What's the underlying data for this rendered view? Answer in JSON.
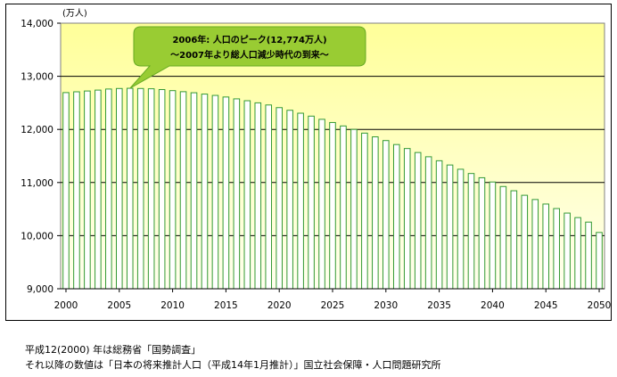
{
  "chart_data": {
    "type": "bar",
    "y_unit_label": "(万人)",
    "ylim": [
      9000,
      14000
    ],
    "yticks": [
      "9,000",
      "10,000",
      "11,000",
      "12,000",
      "13,000",
      "14,000"
    ],
    "ytick_values": [
      9000,
      10000,
      11000,
      12000,
      13000,
      14000
    ],
    "xticks": [
      "2000",
      "2005",
      "2010",
      "2015",
      "2020",
      "2025",
      "2030",
      "2035",
      "2040",
      "2045",
      "2050"
    ],
    "xtick_values": [
      2000,
      2005,
      2010,
      2015,
      2020,
      2025,
      2030,
      2035,
      2040,
      2045,
      2050
    ],
    "categories": [
      2000,
      2001,
      2002,
      2003,
      2004,
      2005,
      2006,
      2007,
      2008,
      2009,
      2010,
      2011,
      2012,
      2013,
      2014,
      2015,
      2016,
      2017,
      2018,
      2019,
      2020,
      2021,
      2022,
      2023,
      2024,
      2025,
      2026,
      2027,
      2028,
      2029,
      2030,
      2031,
      2032,
      2033,
      2034,
      2035,
      2036,
      2037,
      2038,
      2039,
      2040,
      2041,
      2042,
      2043,
      2044,
      2045,
      2046,
      2047,
      2048,
      2049,
      2050
    ],
    "values": [
      12693,
      12708,
      12723,
      12740,
      12760,
      12770,
      12774,
      12770,
      12765,
      12750,
      12730,
      12710,
      12690,
      12665,
      12640,
      12610,
      12575,
      12540,
      12500,
      12460,
      12410,
      12360,
      12305,
      12250,
      12190,
      12130,
      12065,
      12000,
      11930,
      11860,
      11790,
      11715,
      11640,
      11565,
      11485,
      11410,
      11330,
      11250,
      11170,
      11090,
      11010,
      10925,
      10845,
      10760,
      10680,
      10595,
      10510,
      10425,
      10340,
      10255,
      10060
    ],
    "annotation": {
      "line1": "2006年: 人口のピーク(12,774万人)",
      "line2": "～2007年より総人口減少時代の到来～",
      "points_to_year": 2006
    },
    "colors": {
      "bar_fill": "#ffffff",
      "bar_stroke": "#339933",
      "plot_top": "#ffff99",
      "plot_bottom": "#ffffee",
      "callout_fill": "#99cc33",
      "callout_stroke": "#66aa22"
    }
  },
  "footnotes": {
    "line1": "平成12(2000) 年は総務省「国勢調査」",
    "line2": "それ以降の数値は「日本の将来推計人口（平成14年1月推計）」国立社会保障・人口問題研究所"
  }
}
